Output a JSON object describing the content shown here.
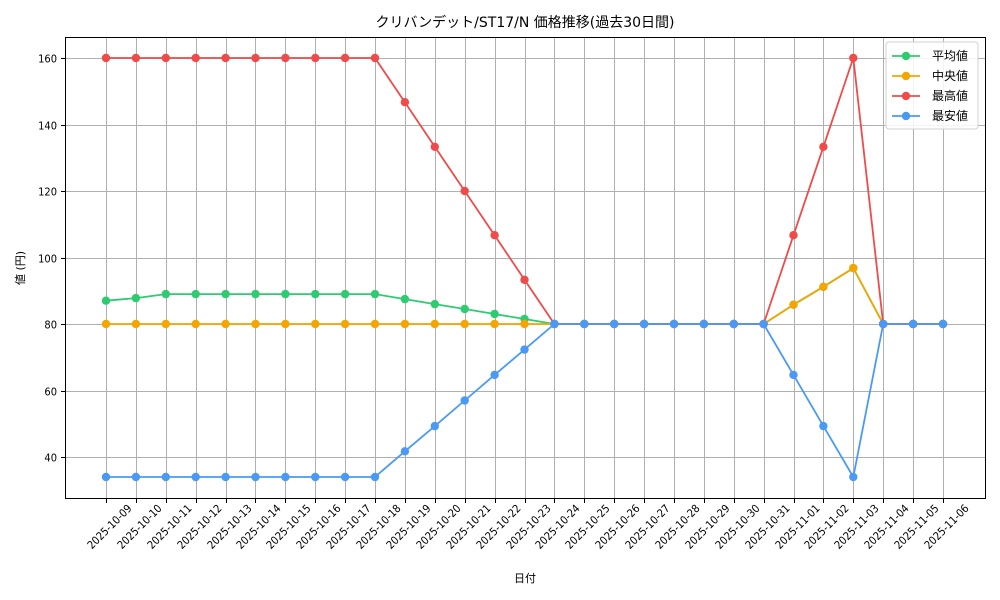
{
  "chart_data": {
    "type": "line",
    "title": "クリバンデット/ST17/N 価格推移(過去30日間)",
    "xlabel": "日付",
    "ylabel": "値 (円)",
    "ylim": [
      28,
      166
    ],
    "yticks": [
      40,
      60,
      80,
      100,
      120,
      140,
      160
    ],
    "grid": true,
    "legend_position": "upper right",
    "x": [
      "2025-10-09",
      "2025-10-10",
      "2025-10-11",
      "2025-10-12",
      "2025-10-13",
      "2025-10-14",
      "2025-10-15",
      "2025-10-16",
      "2025-10-17",
      "2025-10-18",
      "2025-10-19",
      "2025-10-20",
      "2025-10-21",
      "2025-10-22",
      "2025-10-23",
      "2025-10-24",
      "2025-10-25",
      "2025-10-26",
      "2025-10-27",
      "2025-10-28",
      "2025-10-29",
      "2025-10-30",
      "2025-10-31",
      "2025-11-01",
      "2025-11-02",
      "2025-11-03",
      "2025-11-04",
      "2025-11-05",
      "2025-11-06"
    ],
    "series": [
      {
        "name": "平均値",
        "color": "#2ecc71",
        "values": [
          87.0,
          87.8,
          89,
          89,
          89,
          89,
          89,
          89,
          89,
          89,
          87.5,
          86.0,
          84.5,
          83.0,
          81.5,
          80,
          80,
          80,
          80,
          80,
          80,
          80,
          80,
          85.8,
          91.2,
          96.8,
          80,
          80,
          80
        ]
      },
      {
        "name": "中央値",
        "color": "#f5a500",
        "values": [
          80,
          80,
          80,
          80,
          80,
          80,
          80,
          80,
          80,
          80,
          80,
          80,
          80,
          80,
          80,
          80,
          80,
          80,
          80,
          80,
          80,
          80,
          80,
          85.8,
          91.2,
          96.8,
          80,
          80,
          80
        ]
      },
      {
        "name": "最高値",
        "color": "#f04b4b",
        "values": [
          160,
          160,
          160,
          160,
          160,
          160,
          160,
          160,
          160,
          160,
          146.7,
          133.3,
          120,
          106.7,
          93.3,
          80,
          80,
          80,
          80,
          80,
          80,
          80,
          80,
          106.7,
          133.3,
          160,
          80,
          80,
          80
        ]
      },
      {
        "name": "最安値",
        "color": "#4a9af5",
        "values": [
          34,
          34,
          34,
          34,
          34,
          34,
          34,
          34,
          34,
          34,
          41.7,
          49.3,
          57,
          64.7,
          72.3,
          80,
          80,
          80,
          80,
          80,
          80,
          80,
          80,
          64.7,
          49.3,
          34,
          80,
          80,
          80
        ]
      }
    ]
  }
}
